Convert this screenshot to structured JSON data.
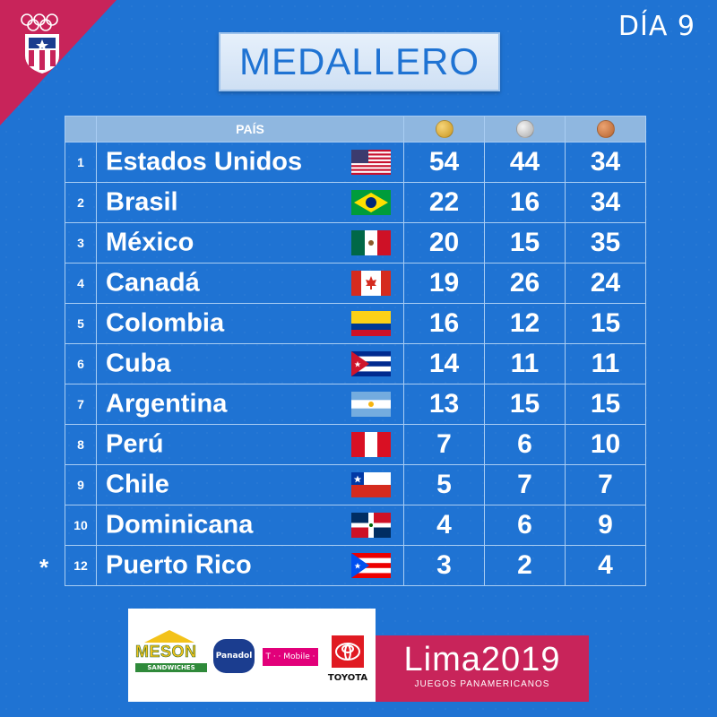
{
  "header": {
    "day_label": "DÍA 9",
    "title": "MEDALLERO"
  },
  "table": {
    "country_header": "PAÍS",
    "medal_headers": [
      {
        "icon": "gold-medal-icon",
        "color": "#d4a52a"
      },
      {
        "icon": "silver-medal-icon",
        "color": "#c9c9c9"
      },
      {
        "icon": "bronze-medal-icon",
        "color": "#c97a45"
      }
    ],
    "rows": [
      {
        "rank": "1",
        "country": "Estados Unidos",
        "flag": "usa-flag",
        "gold": "54",
        "silver": "44",
        "bronze": "34"
      },
      {
        "rank": "2",
        "country": "Brasil",
        "flag": "brazil-flag",
        "gold": "22",
        "silver": "16",
        "bronze": "34"
      },
      {
        "rank": "3",
        "country": "México",
        "flag": "mexico-flag",
        "gold": "20",
        "silver": "15",
        "bronze": "35"
      },
      {
        "rank": "4",
        "country": "Canadá",
        "flag": "canada-flag",
        "gold": "19",
        "silver": "26",
        "bronze": "24"
      },
      {
        "rank": "5",
        "country": "Colombia",
        "flag": "colombia-flag",
        "gold": "16",
        "silver": "12",
        "bronze": "15"
      },
      {
        "rank": "6",
        "country": "Cuba",
        "flag": "cuba-flag",
        "gold": "14",
        "silver": "11",
        "bronze": "11"
      },
      {
        "rank": "7",
        "country": "Argentina",
        "flag": "argentina-flag",
        "gold": "13",
        "silver": "15",
        "bronze": "15"
      },
      {
        "rank": "8",
        "country": "Perú",
        "flag": "peru-flag",
        "gold": "7",
        "silver": "6",
        "bronze": "10"
      },
      {
        "rank": "9",
        "country": "Chile",
        "flag": "chile-flag",
        "gold": "5",
        "silver": "7",
        "bronze": "7"
      },
      {
        "rank": "10",
        "country": "Dominicana",
        "flag": "dominican-flag",
        "gold": "4",
        "silver": "6",
        "bronze": "9"
      },
      {
        "rank": "12",
        "country": "Puerto Rico",
        "flag": "puerto-rico-flag",
        "gold": "3",
        "silver": "2",
        "bronze": "4"
      }
    ],
    "highlight_marker": "*"
  },
  "sponsors": {
    "meson_name": "MESON",
    "meson_sub": "SANDWICHES",
    "panadol": "Panadol",
    "tmobile": "T · · Mobile ·",
    "toyota": "TOYOTA"
  },
  "event": {
    "name": "Lima2019",
    "subtitle": "JUEGOS PANAMERICANOS"
  },
  "colors": {
    "background": "#1f73d3",
    "accent": "#c8245a",
    "title_text": "#1f73d3"
  }
}
